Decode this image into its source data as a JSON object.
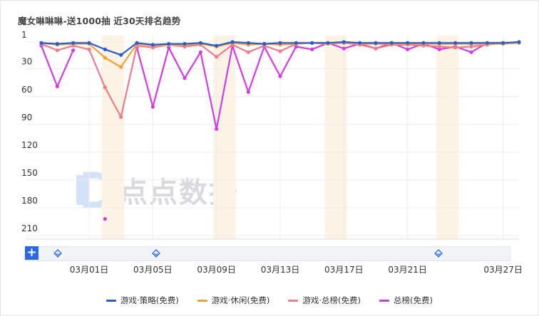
{
  "title": "魔女啉啉啉-送1000抽 近30天排名趋势",
  "watermark_text": "点点数据",
  "plus_label": "+",
  "chart_data": {
    "type": "line",
    "y_inverted": true,
    "ylim": [
      1,
      210
    ],
    "yticks": [
      "1",
      "30",
      "60",
      "90",
      "120",
      "150",
      "180",
      "210"
    ],
    "ytick_values": [
      1,
      30,
      60,
      90,
      120,
      150,
      180,
      210
    ],
    "x": [
      "02/26",
      "02/27",
      "02/28",
      "03/01",
      "03/02",
      "03/03",
      "03/04",
      "03/05",
      "03/06",
      "03/07",
      "03/08",
      "03/09",
      "03/10",
      "03/11",
      "03/12",
      "03/13",
      "03/14",
      "03/15",
      "03/16",
      "03/17",
      "03/18",
      "03/19",
      "03/20",
      "03/21",
      "03/22",
      "03/23",
      "03/24",
      "03/25",
      "03/26",
      "03/27",
      "03/28"
    ],
    "xtick_labels": [
      "03月01日",
      "03月05日",
      "03月09日",
      "03月13日",
      "03月17日",
      "03月21日",
      "03月27日"
    ],
    "xtick_indices": [
      3,
      7,
      11,
      15,
      19,
      23,
      29
    ],
    "highlight_bands": [
      [
        3.8,
        5.2
      ],
      [
        10.8,
        12.2
      ],
      [
        17.8,
        19.2
      ],
      [
        24.8,
        26.2
      ]
    ],
    "series": [
      {
        "name": "游戏·策略(免费)",
        "color": "#2a5bd7",
        "values": [
          2,
          3,
          2,
          2,
          9,
          15,
          2,
          4,
          3,
          3,
          2,
          5,
          1,
          2,
          3,
          2,
          2,
          2,
          2,
          1,
          2,
          2,
          2,
          2,
          2,
          2,
          2,
          2,
          2,
          2,
          1
        ]
      },
      {
        "name": "游戏·休闲(免费)",
        "color": "#f7a035",
        "values": [
          2,
          4,
          3,
          3,
          18,
          28,
          3,
          5,
          4,
          4,
          3,
          6,
          2,
          4,
          3,
          4,
          3,
          2,
          3,
          2,
          3,
          3,
          3,
          3,
          3,
          3,
          3,
          3,
          3,
          3,
          2
        ]
      },
      {
        "name": "游戏·总榜(免费)",
        "color": "#f2798a",
        "values": [
          3,
          10,
          5,
          9,
          50,
          82,
          5,
          7,
          4,
          6,
          4,
          17,
          4,
          12,
          5,
          11,
          3,
          2,
          2,
          2,
          4,
          8,
          4,
          4,
          5,
          6,
          7,
          6,
          4,
          2,
          2
        ]
      },
      {
        "name": "总榜(免费)",
        "color": "#d23be6",
        "values": [
          5,
          49,
          10,
          null,
          192,
          null,
          7,
          71,
          7,
          40,
          12,
          95,
          5,
          55,
          6,
          38,
          6,
          9,
          2,
          8,
          3,
          8,
          2,
          9,
          3,
          9,
          6,
          12,
          2,
          2,
          null
        ]
      }
    ]
  },
  "legend": [
    "游戏·策略(免费)",
    "游戏·休闲(免费)",
    "游戏·总榜(免费)",
    "总榜(免费)"
  ]
}
